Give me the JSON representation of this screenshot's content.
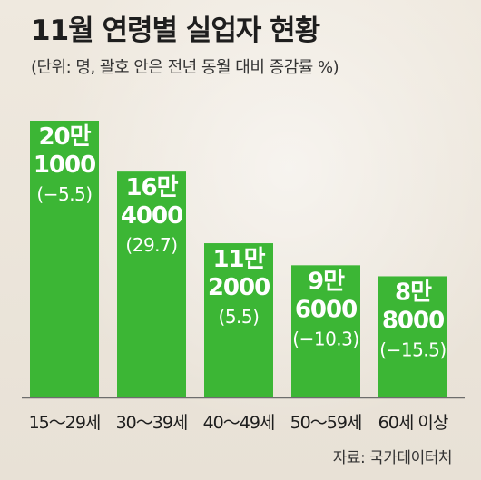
{
  "title": "11월 연령별 실업자 현황",
  "subtitle": "(단위: 명, 괄호 안은 전년 동월 대비 증감률 %)",
  "source": "자료: 국가데이터처",
  "colors": {
    "bar": "#3cb635",
    "label_inside": "#ffffff",
    "label_outside": "#1e1e1e"
  },
  "chart_data": {
    "type": "bar",
    "categories": [
      "15～29세",
      "30～39세",
      "40～49세",
      "50～59세",
      "60세 이상"
    ],
    "values": [
      201000,
      164000,
      112000,
      96000,
      88000
    ],
    "label_lines": [
      [
        "20만",
        "1000"
      ],
      [
        "16만",
        "4000"
      ],
      [
        "11만",
        "2000"
      ],
      [
        "9만",
        "6000"
      ],
      [
        "8만",
        "8000"
      ]
    ],
    "change_labels": [
      "(−5.5)",
      "(29.7)",
      "(5.5)",
      "(−10.3)",
      "(−15.5)"
    ],
    "change_pct": [
      -5.5,
      29.7,
      5.5,
      -10.3,
      -15.5
    ],
    "ylim": [
      0,
      201000
    ]
  }
}
